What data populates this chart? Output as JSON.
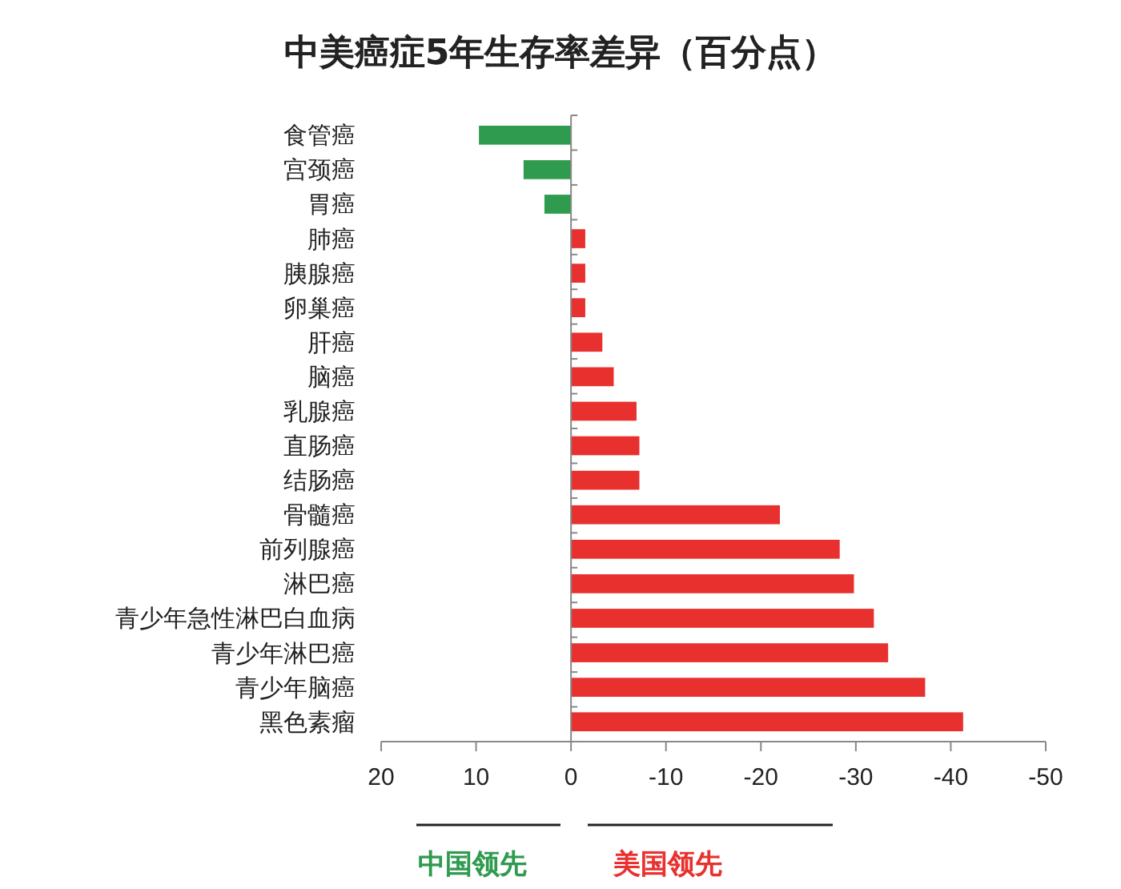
{
  "chart_data": {
    "type": "bar",
    "orientation": "horizontal",
    "title": "中美癌症5年生存率差异（百分点）",
    "categories": [
      "食管癌",
      "宫颈癌",
      "胃癌",
      "肺癌",
      "胰腺癌",
      "卵巢癌",
      "肝癌",
      "脑癌",
      "乳腺癌",
      "直肠癌",
      "结肠癌",
      "骨髓癌",
      "前列腺癌",
      "淋巴癌",
      "青少年急性淋巴白血病",
      "青少年淋巴癌",
      "青少年脑癌",
      "黑色素瘤"
    ],
    "values": [
      9.7,
      5.0,
      2.8,
      -1.5,
      -1.5,
      -1.5,
      -3.3,
      -4.5,
      -6.9,
      -7.2,
      -7.2,
      -22.0,
      -28.3,
      -29.8,
      -31.9,
      -33.4,
      -37.3,
      -41.3
    ],
    "colors": [
      "#2e9b4e",
      "#2e9b4e",
      "#2e9b4e",
      "#e8312f",
      "#e8312f",
      "#e8312f",
      "#e8312f",
      "#e8312f",
      "#e8312f",
      "#e8312f",
      "#e8312f",
      "#e8312f",
      "#e8312f",
      "#e8312f",
      "#e8312f",
      "#e8312f",
      "#e8312f",
      "#e8312f"
    ],
    "xlim": [
      20,
      -50
    ],
    "xticks": [
      20,
      10,
      0,
      -10,
      -20,
      -30,
      -40,
      -50
    ],
    "annotations": [
      "中国领先",
      "美国领先"
    ]
  }
}
